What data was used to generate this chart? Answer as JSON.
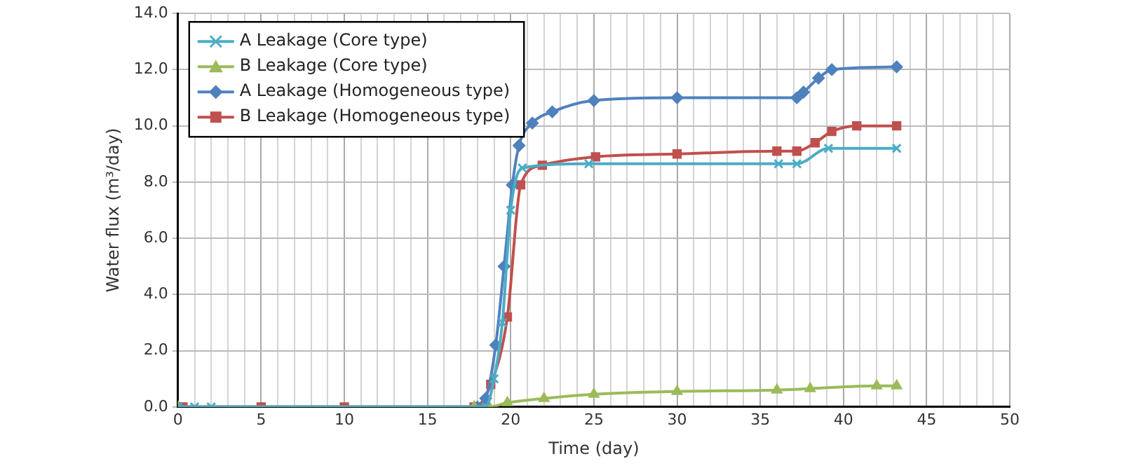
{
  "chart_data": {
    "type": "line",
    "xlabel": "Time (day)",
    "ylabel": "Water flux (m³/day)",
    "xlim": [
      0,
      50
    ],
    "ylim": [
      0,
      14
    ],
    "xticks": [
      0,
      {
        "value": 1,
        "label": null
      },
      {
        "value": 2,
        "label": null
      },
      {
        "value": 3,
        "label": null
      },
      {
        "value": 4,
        "label": null
      },
      5,
      {
        "value": 6,
        "label": null
      },
      {
        "value": 7,
        "label": null
      },
      {
        "value": 8,
        "label": null
      },
      {
        "value": 9,
        "label": null
      },
      10,
      {
        "value": 11,
        "label": null
      },
      {
        "value": 12,
        "label": null
      },
      {
        "value": 13,
        "label": null
      },
      {
        "value": 14,
        "label": null
      },
      15,
      {
        "value": 16,
        "label": null
      },
      {
        "value": 17,
        "label": null
      },
      {
        "value": 18,
        "label": null
      },
      {
        "value": 19,
        "label": null
      },
      20,
      {
        "value": 21,
        "label": null
      },
      {
        "value": 22,
        "label": null
      },
      {
        "value": 23,
        "label": null
      },
      {
        "value": 24,
        "label": null
      },
      25,
      {
        "value": 26,
        "label": null
      },
      {
        "value": 27,
        "label": null
      },
      {
        "value": 28,
        "label": null
      },
      {
        "value": 29,
        "label": null
      },
      30,
      {
        "value": 31,
        "label": null
      },
      {
        "value": 32,
        "label": null
      },
      {
        "value": 33,
        "label": null
      },
      {
        "value": 34,
        "label": null
      },
      35,
      {
        "value": 36,
        "label": null
      },
      {
        "value": 37,
        "label": null
      },
      {
        "value": 38,
        "label": null
      },
      {
        "value": 39,
        "label": null
      },
      40,
      {
        "value": 41,
        "label": null
      },
      {
        "value": 42,
        "label": null
      },
      {
        "value": 43,
        "label": null
      },
      {
        "value": 44,
        "label": null
      },
      45,
      {
        "value": 46,
        "label": null
      },
      {
        "value": 47,
        "label": null
      },
      {
        "value": 48,
        "label": null
      },
      {
        "value": 49,
        "label": null
      },
      50
    ],
    "yticks": [
      {
        "value": 0,
        "label": "0.0"
      },
      {
        "value": 2,
        "label": "2.0"
      },
      {
        "value": 4,
        "label": "4.0"
      },
      {
        "value": 6,
        "label": "6.0"
      },
      {
        "value": 8,
        "label": "8.0"
      },
      {
        "value": 10,
        "label": "10.0"
      },
      {
        "value": 12,
        "label": "12.0"
      },
      {
        "value": 14,
        "label": "14.0"
      }
    ],
    "grid": true,
    "legend": "top left",
    "series": [
      {
        "name": "A Leakage (Core type)",
        "color": "#4bacc6",
        "marker": "cross",
        "x": [
          0,
          1,
          2,
          18.5,
          19,
          19.5,
          20,
          20.7,
          24.7,
          36.1,
          37.2,
          39.1,
          43.2
        ],
        "values": [
          0,
          0,
          0,
          0,
          1,
          3,
          7,
          8.5,
          8.65,
          8.65,
          8.65,
          9.2,
          9.2
        ]
      },
      {
        "name": "B Leakage (Core type)",
        "color": "#9bbb59",
        "marker": "triangle",
        "x": [
          0,
          17.8,
          18.7,
          19.8,
          22,
          25,
          30,
          36,
          38,
          42,
          43.2
        ],
        "values": [
          0,
          0,
          0,
          0.15,
          0.3,
          0.45,
          0.55,
          0.6,
          0.65,
          0.75,
          0.75
        ]
      },
      {
        "name": "A Leakage (Homogeneous type)",
        "color": "#4f81bd",
        "marker": "diamond",
        "x": [
          0,
          18,
          18.5,
          19.1,
          19.6,
          20.1,
          20.5,
          21.3,
          22.5,
          25,
          30,
          37.2,
          37.6,
          38.5,
          39.3,
          43.2
        ],
        "values": [
          0,
          0,
          0.3,
          2.2,
          5,
          7.9,
          9.3,
          10.1,
          10.5,
          10.9,
          11,
          11,
          11.2,
          11.7,
          12,
          12.1
        ]
      },
      {
        "name": "B Leakage (Homogeneous type)",
        "color": "#c0504d",
        "marker": "square",
        "x": [
          0,
          0.3,
          5,
          10,
          17.8,
          18.8,
          19.8,
          20.6,
          21.9,
          25.1,
          30,
          36,
          37.2,
          38.3,
          39.3,
          40.8,
          43.2
        ],
        "values": [
          0,
          0,
          0,
          0,
          0,
          0.8,
          3.2,
          7.9,
          8.6,
          8.9,
          9,
          9.1,
          9.1,
          9.4,
          9.8,
          10,
          10
        ]
      }
    ]
  }
}
